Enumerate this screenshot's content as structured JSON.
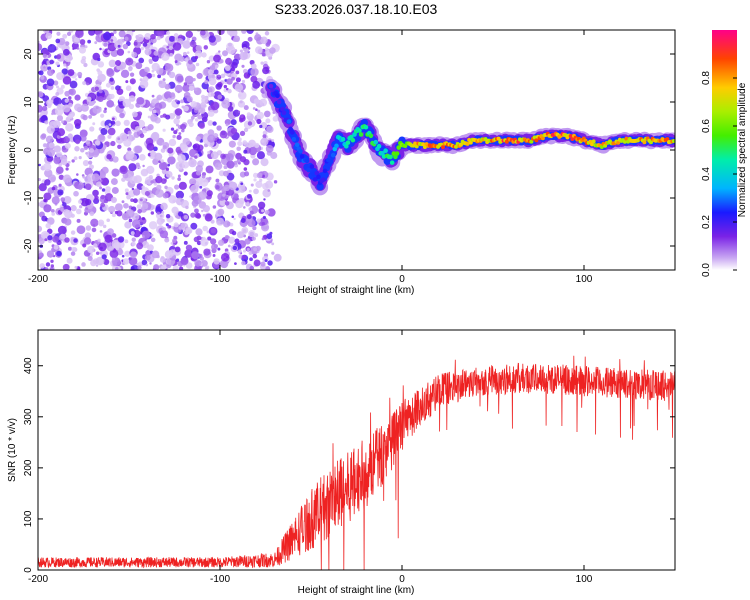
{
  "title": "S233.2026.037.18.10.E03",
  "colors": {
    "signal_line": "#ee2222",
    "noise_purple": "#7a22e6",
    "axis": "#000000"
  },
  "chart_data": [
    {
      "type": "heatmap",
      "title": "",
      "xlabel": "Height of straight line (km)",
      "ylabel": "Frequency (Hz)",
      "xlim": [
        -200,
        150
      ],
      "ylim": [
        -25,
        25
      ],
      "xticks": [
        "-200",
        "-100",
        "0",
        "100"
      ],
      "yticks": [
        "20",
        "10",
        "0",
        "-10",
        "-20"
      ],
      "colorbar": {
        "label": "Normalized spectral amplitude",
        "range": [
          0.0,
          1.0
        ],
        "ticks": [
          "0.8",
          "0.6",
          "0.4",
          "0.2",
          "0.0"
        ]
      },
      "ridge": {
        "height_km": [
          -72,
          -65,
          -60,
          -55,
          -50,
          -45,
          -40,
          -35,
          -30,
          -25,
          -20,
          -15,
          -10,
          -5,
          0,
          10,
          20,
          30,
          40,
          50,
          60,
          70,
          80,
          90,
          100,
          110,
          120,
          130,
          140,
          150
        ],
        "freq_hz": [
          13,
          8,
          3,
          -2,
          -4,
          -7,
          -2,
          2,
          1,
          3,
          5,
          1,
          -1,
          -2,
          1,
          1,
          1,
          1,
          2,
          2,
          2,
          2,
          3,
          3,
          2,
          1,
          2,
          2,
          2,
          2
        ],
        "amplitude": [
          0.2,
          0.25,
          0.3,
          0.3,
          0.3,
          0.25,
          0.3,
          0.4,
          0.5,
          0.5,
          0.55,
          0.5,
          0.5,
          0.55,
          0.7,
          0.85,
          0.9,
          0.85,
          0.8,
          0.85,
          0.95,
          0.85,
          0.9,
          0.9,
          0.85,
          0.8,
          0.85,
          0.85,
          0.85,
          0.85
        ]
      }
    },
    {
      "type": "line",
      "title": "",
      "xlabel": "Height of straight line (km)",
      "ylabel": "SNR (10 * v/v)",
      "xlim": [
        -200,
        150
      ],
      "ylim": [
        0,
        470
      ],
      "xticks": [
        "-200",
        "-100",
        "0",
        "100"
      ],
      "yticks": [
        "400",
        "300",
        "200",
        "100",
        "0"
      ],
      "envelope": {
        "height_km": [
          -200,
          -100,
          -70,
          -60,
          -50,
          -40,
          -30,
          -20,
          -10,
          0,
          10,
          20,
          40,
          60,
          80,
          100,
          120,
          150
        ],
        "snr_mean": [
          15,
          15,
          20,
          60,
          100,
          130,
          160,
          190,
          230,
          280,
          320,
          350,
          370,
          375,
          375,
          370,
          365,
          360
        ],
        "snr_spread": [
          10,
          10,
          15,
          40,
          60,
          70,
          70,
          70,
          60,
          50,
          40,
          35,
          30,
          30,
          30,
          30,
          30,
          30
        ]
      }
    }
  ]
}
